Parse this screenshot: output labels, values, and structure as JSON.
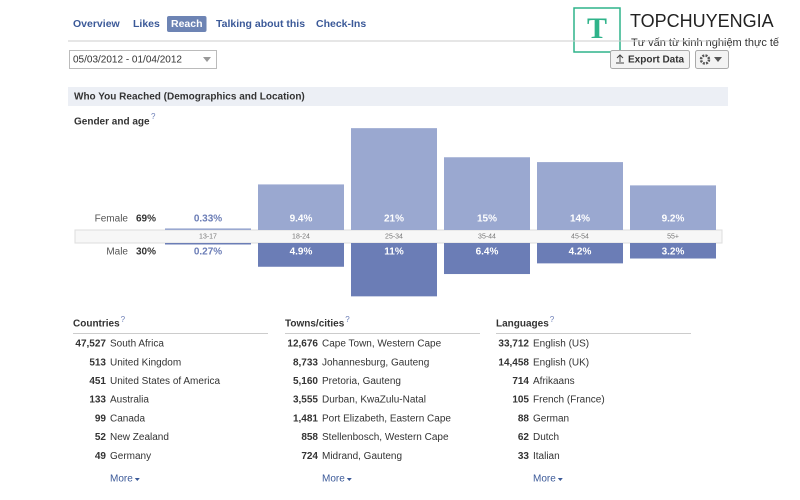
{
  "brand": {
    "logo_letter": "T",
    "name": "TOPCHUYENGIA",
    "tagline": "Tư vấn từ kinh nghiệm thực tế"
  },
  "tabs": [
    "Overview",
    "Likes",
    "Reach",
    "Talking about this",
    "Check-Ins"
  ],
  "active_tab": 2,
  "date_range": "05/03/2012 - 01/04/2012",
  "export_button": "Export Data",
  "section_title": "Who You Reached (Demographics and Location)",
  "help_mark": "?",
  "gender_age": {
    "title": "Gender and age",
    "categories": [
      "13-17",
      "18-24",
      "25-34",
      "35-44",
      "45-54",
      "55+"
    ],
    "female": {
      "name": "Female",
      "total": "69%",
      "color": "#9aa8d0",
      "values": [
        0.33,
        9.4,
        21,
        15,
        14,
        9.2
      ],
      "value_labels": [
        "0.33%",
        "9.4%",
        "21%",
        "15%",
        "14%",
        "9.2%"
      ]
    },
    "male": {
      "name": "Male",
      "total": "30%",
      "color": "#6b7db6",
      "values": [
        0.27,
        4.9,
        11,
        6.4,
        4.2,
        3.2
      ],
      "value_labels": [
        "0.27%",
        "4.9%",
        "11%",
        "6.4%",
        "4.2%",
        "3.2%"
      ]
    }
  },
  "lists": [
    {
      "title": "Countries",
      "items": [
        [
          "47,527",
          "South Africa"
        ],
        [
          "513",
          "United Kingdom"
        ],
        [
          "451",
          "United States of America"
        ],
        [
          "133",
          "Australia"
        ],
        [
          "99",
          "Canada"
        ],
        [
          "52",
          "New Zealand"
        ],
        [
          "49",
          "Germany"
        ]
      ],
      "more": "More"
    },
    {
      "title": "Towns/cities",
      "items": [
        [
          "12,676",
          "Cape Town, Western Cape"
        ],
        [
          "8,733",
          "Johannesburg, Gauteng"
        ],
        [
          "5,160",
          "Pretoria, Gauteng"
        ],
        [
          "3,555",
          "Durban, KwaZulu-Natal"
        ],
        [
          "1,481",
          "Port Elizabeth, Eastern Cape"
        ],
        [
          "858",
          "Stellenbosch, Western Cape"
        ],
        [
          "724",
          "Midrand, Gauteng"
        ]
      ],
      "more": "More"
    },
    {
      "title": "Languages",
      "items": [
        [
          "33,712",
          "English (US)"
        ],
        [
          "14,458",
          "English (UK)"
        ],
        [
          "714",
          "Afrikaans"
        ],
        [
          "105",
          "French (France)"
        ],
        [
          "88",
          "German"
        ],
        [
          "62",
          "Dutch"
        ],
        [
          "33",
          "Italian"
        ]
      ],
      "more": "More"
    }
  ]
}
